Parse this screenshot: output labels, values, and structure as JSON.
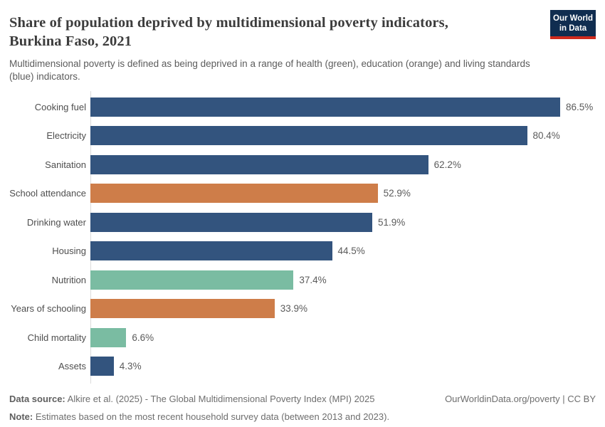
{
  "header": {
    "title_line1": "Share of population deprived by multidimensional poverty indicators,",
    "title_line2": "Burkina Faso, 2021",
    "subtitle_line1": "Multidimensional poverty is defined as being deprived in a range of health (green), education (orange) and living standards",
    "subtitle_line2": "(blue) indicators.",
    "logo": {
      "line1": "Our World",
      "line2": "in Data",
      "bg_color": "#102d50",
      "accent_color": "#cf2a1d"
    }
  },
  "chart_data": {
    "type": "bar",
    "orientation": "horizontal",
    "title": "Share of population deprived by multidimensional poverty indicators, Burkina Faso, 2021",
    "value_unit": "%",
    "x_range": [
      0,
      86.5
    ],
    "grid": false,
    "legend_position": "none (color meaning given in subtitle)",
    "palette": {
      "health": "#7abca2",
      "education": "#ce7d49",
      "living_standards": "#33547e"
    },
    "categories": [
      "Cooking fuel",
      "Electricity",
      "Sanitation",
      "School attendance",
      "Drinking water",
      "Housing",
      "Nutrition",
      "Years of schooling",
      "Child mortality",
      "Assets"
    ],
    "values": [
      86.5,
      80.4,
      62.2,
      52.9,
      51.9,
      44.5,
      37.4,
      33.9,
      6.6,
      4.3
    ],
    "bars": [
      {
        "label": "Cooking fuel",
        "value": 86.5,
        "display_value": "86.5%",
        "dimension": "living_standards"
      },
      {
        "label": "Electricity",
        "value": 80.4,
        "display_value": "80.4%",
        "dimension": "living_standards"
      },
      {
        "label": "Sanitation",
        "value": 62.2,
        "display_value": "62.2%",
        "dimension": "living_standards"
      },
      {
        "label": "School attendance",
        "value": 52.9,
        "display_value": "52.9%",
        "dimension": "education"
      },
      {
        "label": "Drinking water",
        "value": 51.9,
        "display_value": "51.9%",
        "dimension": "living_standards"
      },
      {
        "label": "Housing",
        "value": 44.5,
        "display_value": "44.5%",
        "dimension": "living_standards"
      },
      {
        "label": "Nutrition",
        "value": 37.4,
        "display_value": "37.4%",
        "dimension": "health"
      },
      {
        "label": "Years of schooling",
        "value": 33.9,
        "display_value": "33.9%",
        "dimension": "education"
      },
      {
        "label": "Child mortality",
        "value": 6.6,
        "display_value": "6.6%",
        "dimension": "health"
      },
      {
        "label": "Assets",
        "value": 4.3,
        "display_value": "4.3%",
        "dimension": "living_standards"
      }
    ]
  },
  "footer": {
    "source_label": "Data source:",
    "source_text": "Alkire et al. (2025) - The Global Multidimensional Poverty Index (MPI) 2025",
    "link_text": "OurWorldinData.org/poverty | CC BY",
    "note_label": "Note:",
    "note_text": "Estimates based on the most recent household survey data (between 2013 and 2023)."
  }
}
